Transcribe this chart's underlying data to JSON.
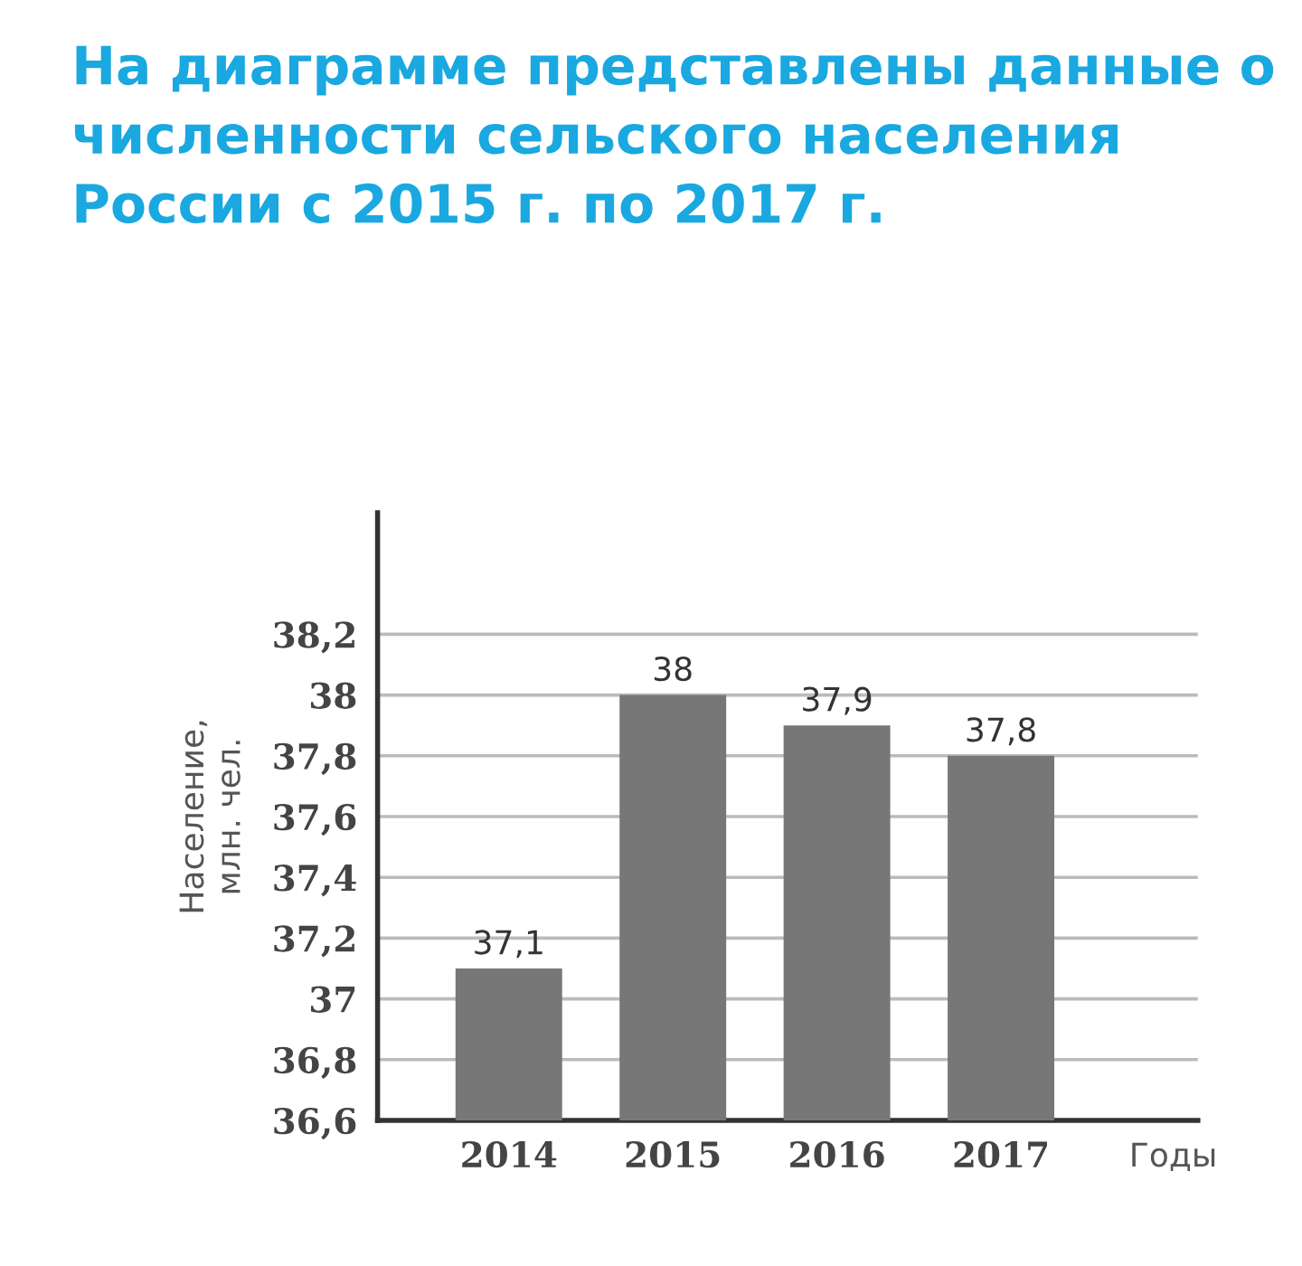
{
  "chart_data": {
    "type": "bar",
    "title": "На диаграмме представлены данные о численности сельского населения России с 2015 г. по 2017 г.",
    "ylabel": "Население,\nмлн. чел.",
    "xlabel": "Годы",
    "categories": [
      "2014",
      "2015",
      "2016",
      "2017"
    ],
    "values": [
      37.1,
      38,
      37.9,
      37.8
    ],
    "color": "#777777",
    "value_labels": [
      "37,1",
      "38",
      "37,9",
      "37,8"
    ],
    "ylim": [
      36.6,
      38.6
    ],
    "yticks": [
      {
        "value": 36.6,
        "label": "36,6"
      },
      {
        "value": 36.8,
        "label": "36,8"
      },
      {
        "value": 37,
        "label": "37"
      },
      {
        "value": 37.2,
        "label": "37,2"
      },
      {
        "value": 37.4,
        "label": "37,4"
      },
      {
        "value": 37.6,
        "label": "37,6"
      },
      {
        "value": 37.8,
        "label": "37,8"
      },
      {
        "value": 38,
        "label": "38"
      },
      {
        "value": 38.2,
        "label": "38,2"
      }
    ],
    "grid": "y"
  }
}
